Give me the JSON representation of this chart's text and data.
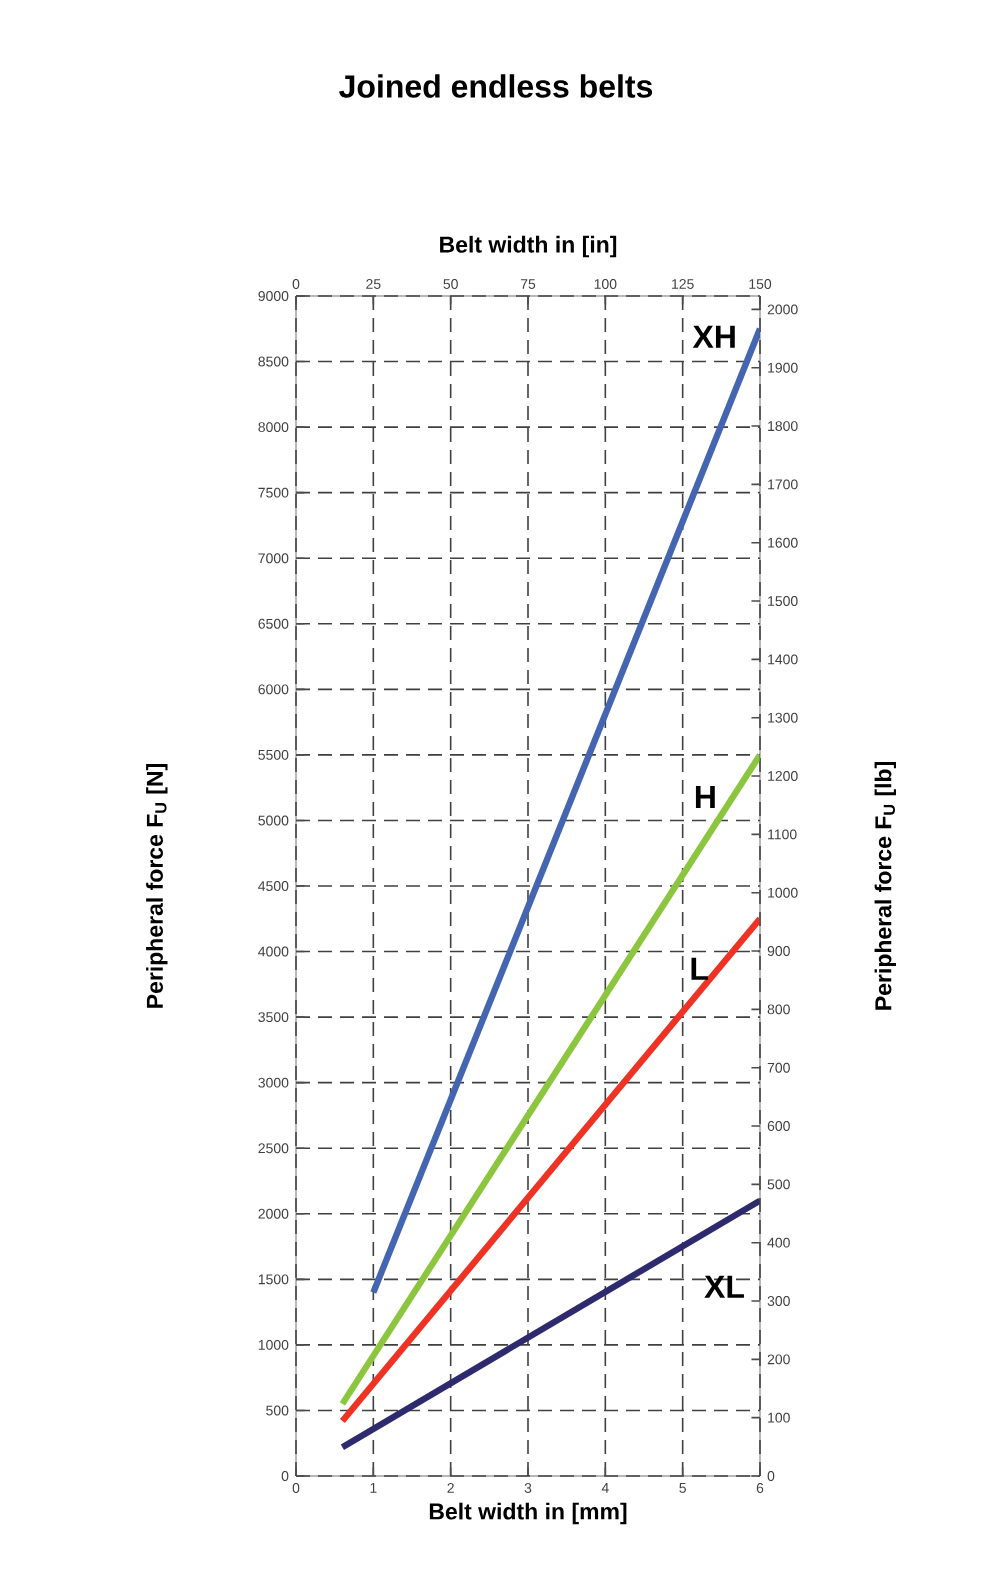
{
  "chart_data": {
    "type": "line",
    "title": "Joined endless belts",
    "xlabel": "Belt width in [mm]",
    "x2label": "Belt width in [in]",
    "ylabel": "Peripheral force F$_{U}$ [N]",
    "y2label": "Peripheral force F$_{U}$ [lb]",
    "xlim": [
      0,
      6
    ],
    "xticks": [
      0,
      1,
      2,
      3,
      4,
      5,
      6
    ],
    "x2lim": [
      0,
      150
    ],
    "x2ticks": [
      0,
      25,
      50,
      75,
      100,
      125,
      150
    ],
    "ylim": [
      0,
      9000
    ],
    "yticks": [
      0,
      500,
      1000,
      1500,
      2000,
      2500,
      3000,
      3500,
      4000,
      4500,
      5000,
      5500,
      6000,
      6500,
      7000,
      7500,
      8000,
      8500,
      9000
    ],
    "y2lim": [
      0,
      2023
    ],
    "y2ticks": [
      0,
      100,
      200,
      300,
      400,
      500,
      600,
      700,
      800,
      900,
      1000,
      1100,
      1200,
      1300,
      1400,
      1500,
      1600,
      1700,
      1800,
      1900,
      2000
    ],
    "grid": true,
    "legend": false,
    "marker": "none",
    "line_style": "solid",
    "series": [
      {
        "name": "XH",
        "color": "#4466b0",
        "x": [
          1,
          6
        ],
        "values": [
          1400,
          8750
        ]
      },
      {
        "name": "H",
        "color": "#8cc63f",
        "x": [
          0.6,
          6
        ],
        "values": [
          550,
          5500
        ]
      },
      {
        "name": "L",
        "color": "#ee3224",
        "x": [
          0.6,
          6
        ],
        "values": [
          420,
          4250
        ]
      },
      {
        "name": "XL",
        "color": "#2e2a6e",
        "x": [
          0.6,
          6
        ],
        "values": [
          220,
          2100
        ]
      }
    ]
  }
}
